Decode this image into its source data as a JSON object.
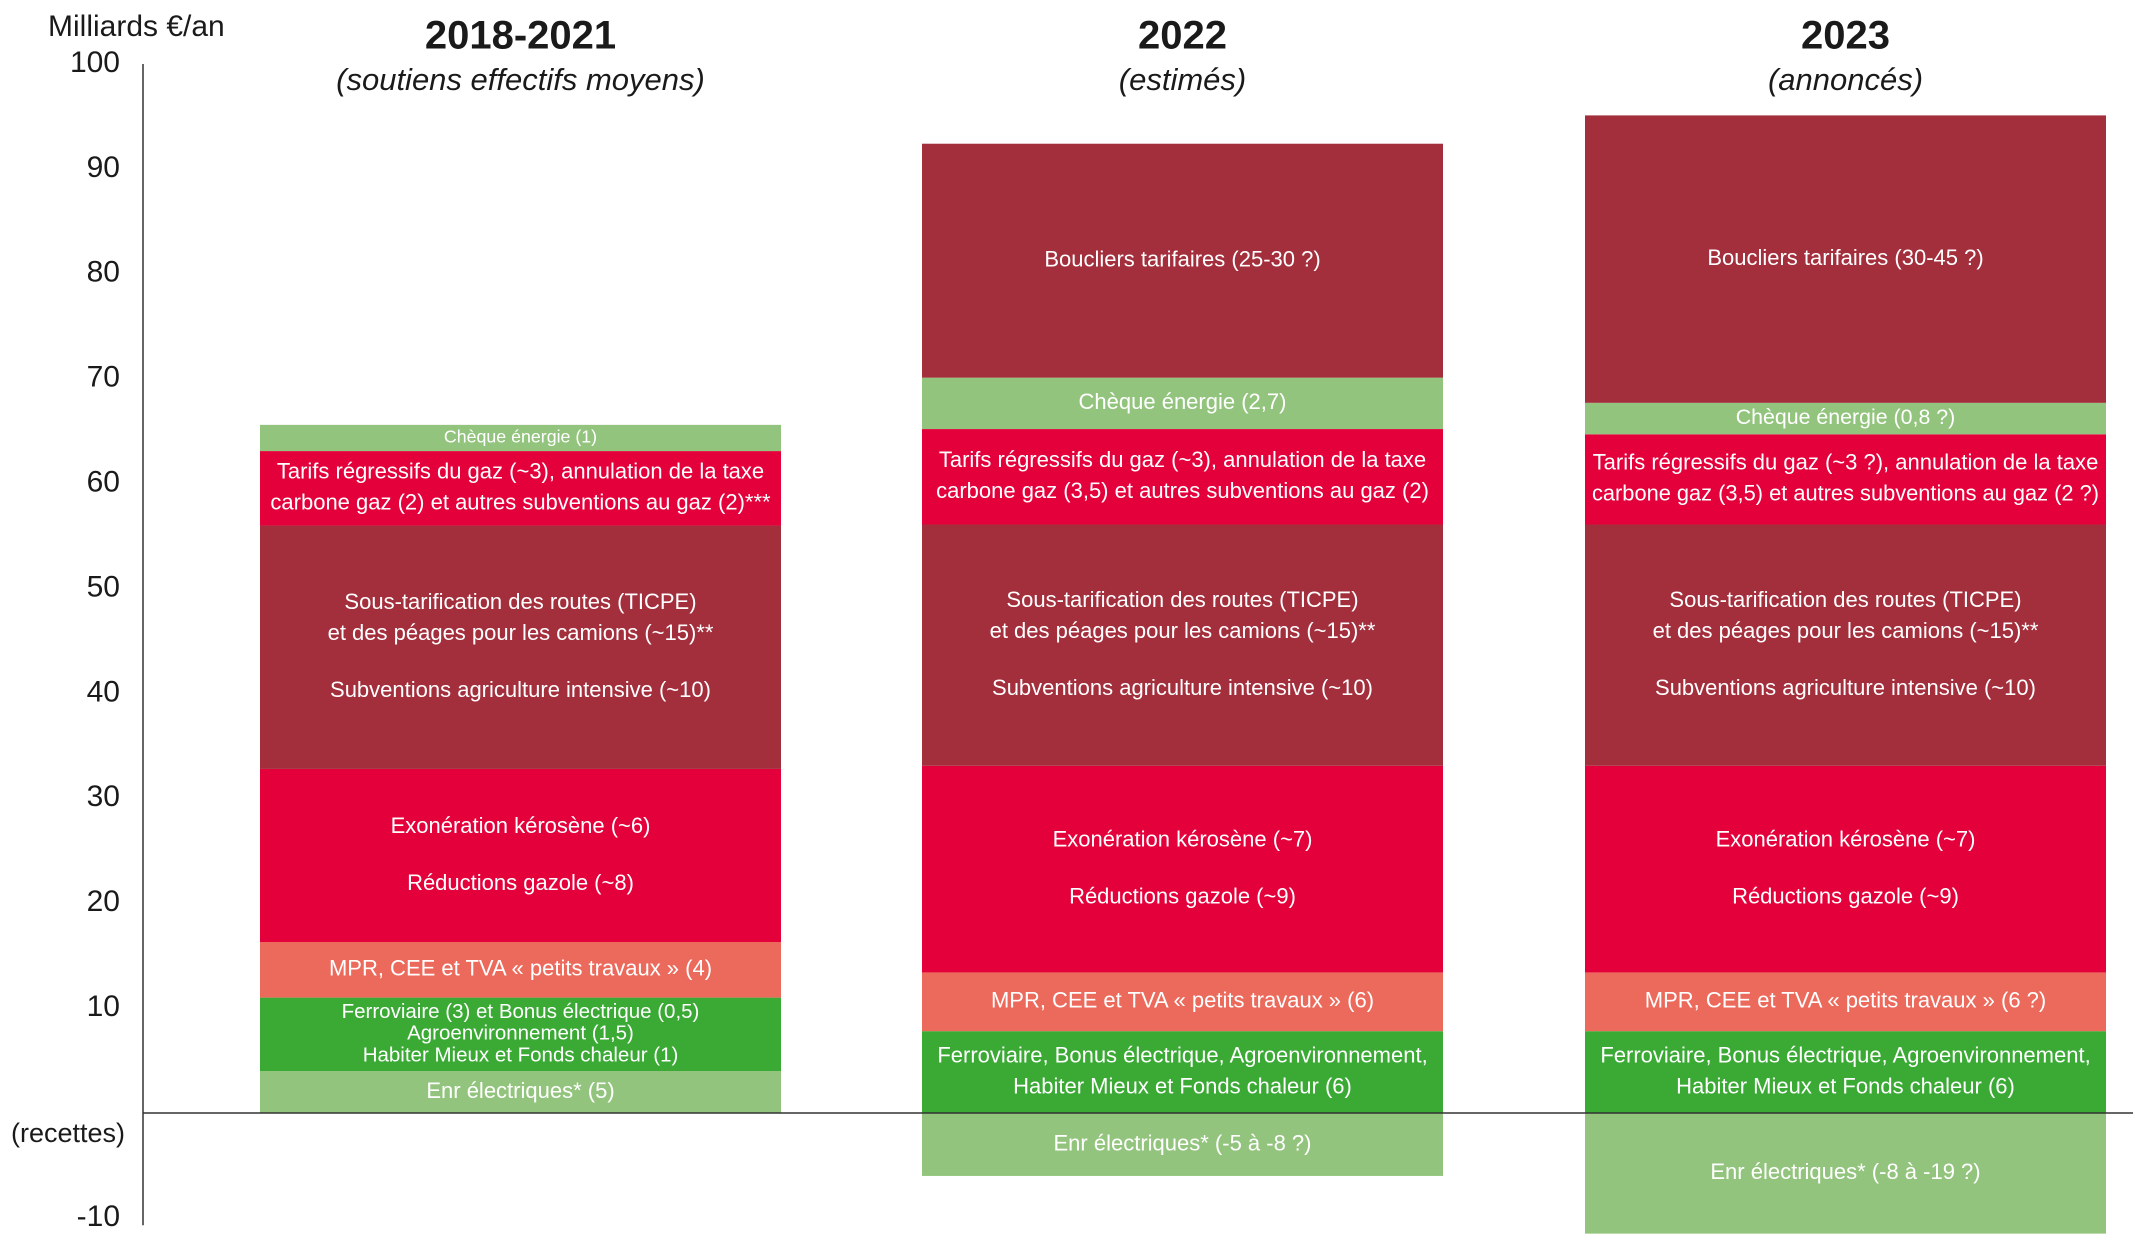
{
  "chart_data": {
    "type": "stacked_bar",
    "y_label": "Milliards €/an",
    "annotation": "(recettes)",
    "ylim": [
      -11.5,
      100
    ],
    "yticks": [
      -10,
      10,
      20,
      30,
      40,
      50,
      60,
      70,
      80,
      90,
      100
    ],
    "stacks": [
      {
        "category": "2018-2021",
        "subtitle": "(soutiens effectifs moyens)",
        "segments": [
          {
            "value": 4,
            "color": "#93c47d",
            "labels": [
              [
                "Enr électriques* (5)"
              ]
            ]
          },
          {
            "value": 7,
            "color": "#3aaa35",
            "labels": [
              [
                "Ferroviaire (3) et Bonus électrique (0,5)",
                "Agroenvironnement (1,5)",
                "Habiter Mieux et Fonds chaleur (1)"
              ]
            ]
          },
          {
            "value": 5.3,
            "color": "#ec6a5c",
            "labels": [
              [
                "MPR, CEE et TVA « petits travaux » (4)"
              ]
            ]
          },
          {
            "value": 16.5,
            "color": "#e4003b",
            "labels": [
              [
                "Exonération kérosène (~6)"
              ],
              [
                "Réductions gazole (~8)"
              ]
            ]
          },
          {
            "value": 23.2,
            "color": "#a32e3c",
            "labels": [
              [
                "Sous-tarification des routes (TICPE)",
                "et des péages pour les camions (~15)**"
              ],
              [
                "Subventions agriculture intensive (~10)"
              ]
            ]
          },
          {
            "value": 7.1,
            "color": "#e4003b",
            "labels": [
              [
                "Tarifs régressifs du gaz (~3), annulation de la taxe",
                "carbone gaz (2) et autres subventions au gaz (2)***"
              ]
            ]
          },
          {
            "value": 2.5,
            "color": "#93c47d",
            "labels": [
              [
                "Chèque énergie (1)"
              ]
            ]
          }
        ]
      },
      {
        "category": "2022",
        "subtitle": "(estimés)",
        "segments": [
          {
            "value": -6,
            "color": "#93c47d",
            "labels": [
              [
                "Enr électriques* (-5 à -8 ?)"
              ]
            ]
          },
          {
            "value": 7.8,
            "color": "#3aaa35",
            "labels": [
              [
                "Ferroviaire, Bonus électrique, Agroenvironnement,",
                "Habiter Mieux et Fonds chaleur (6)"
              ]
            ]
          },
          {
            "value": 5.6,
            "color": "#ec6a5c",
            "labels": [
              [
                "MPR, CEE et TVA « petits travaux » (6)"
              ]
            ]
          },
          {
            "value": 19.7,
            "color": "#e4003b",
            "labels": [
              [
                "Exonération kérosène (~7)"
              ],
              [
                "Réductions gazole (~9)"
              ]
            ]
          },
          {
            "value": 23.0,
            "color": "#a32e3c",
            "labels": [
              [
                "Sous-tarification des routes (TICPE)",
                "et des péages pour les camions (~15)**"
              ],
              [
                "Subventions agriculture intensive (~10)"
              ]
            ]
          },
          {
            "value": 9.1,
            "color": "#e4003b",
            "labels": [
              [
                "Tarifs régressifs du gaz (~3), annulation de la taxe",
                "carbone gaz (3,5) et autres subventions au gaz (2)"
              ]
            ]
          },
          {
            "value": 4.9,
            "color": "#93c47d",
            "labels": [
              [
                "Chèque énergie (2,7)"
              ]
            ]
          },
          {
            "value": 22.3,
            "color": "#a32e3c",
            "labels": [
              [
                "Boucliers tarifaires (25-30 ?)"
              ]
            ]
          }
        ]
      },
      {
        "category": "2023",
        "subtitle": "(annoncés)",
        "segments": [
          {
            "value": -11.5,
            "color": "#93c47d",
            "labels": [
              [
                "Enr électriques* (-8 à -19 ?)"
              ]
            ]
          },
          {
            "value": 7.8,
            "color": "#3aaa35",
            "labels": [
              [
                "Ferroviaire, Bonus électrique, Agroenvironnement,",
                "Habiter Mieux et Fonds chaleur (6)"
              ]
            ]
          },
          {
            "value": 5.6,
            "color": "#ec6a5c",
            "labels": [
              [
                "MPR, CEE et TVA « petits travaux » (6 ?)"
              ]
            ]
          },
          {
            "value": 19.7,
            "color": "#e4003b",
            "labels": [
              [
                "Exonération kérosène (~7)"
              ],
              [
                "Réductions gazole (~9)"
              ]
            ]
          },
          {
            "value": 23.0,
            "color": "#a32e3c",
            "labels": [
              [
                "Sous-tarification des routes (TICPE)",
                "et des péages pour les camions (~15)**"
              ],
              [
                "Subventions agriculture intensive (~10)"
              ]
            ]
          },
          {
            "value": 8.6,
            "color": "#e4003b",
            "labels": [
              [
                "Tarifs régressifs du gaz (~3 ?), annulation de la taxe",
                "carbone gaz (3,5) et autres subventions au gaz (2 ?)"
              ]
            ]
          },
          {
            "value": 3.0,
            "color": "#93c47d",
            "labels": [
              [
                "Chèque énergie (0,8 ?)"
              ]
            ]
          },
          {
            "value": 27.4,
            "color": "#a32e3c",
            "labels": [
              [
                "Boucliers tarifaires (30-45 ?)"
              ]
            ]
          }
        ]
      }
    ]
  }
}
